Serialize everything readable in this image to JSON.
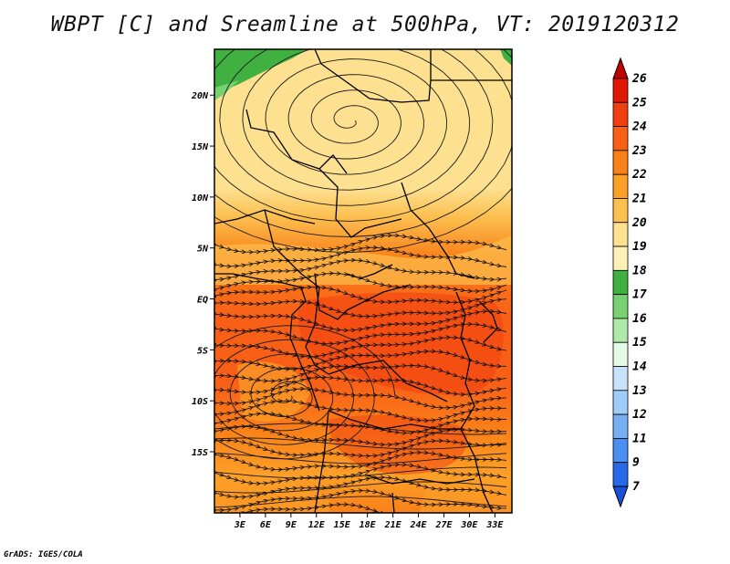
{
  "title": "WBPT [C] and Sreamline at 500hPa, VT: 2019120312",
  "credit": "GrADS: IGES/COLA",
  "map": {
    "lon_range": [
      0,
      35
    ],
    "lat_range": [
      -21,
      24.5
    ],
    "lon_ticks": [
      {
        "value": 3,
        "label": "3E"
      },
      {
        "value": 6,
        "label": "6E"
      },
      {
        "value": 9,
        "label": "9E"
      },
      {
        "value": 12,
        "label": "12E"
      },
      {
        "value": 15,
        "label": "15E"
      },
      {
        "value": 18,
        "label": "18E"
      },
      {
        "value": 21,
        "label": "21E"
      },
      {
        "value": 24,
        "label": "24E"
      },
      {
        "value": 27,
        "label": "27E"
      },
      {
        "value": 30,
        "label": "30E"
      },
      {
        "value": 33,
        "label": "33E"
      }
    ],
    "lat_ticks": [
      {
        "value": 20,
        "label": "20N"
      },
      {
        "value": 15,
        "label": "15N"
      },
      {
        "value": 10,
        "label": "10N"
      },
      {
        "value": 5,
        "label": "5N"
      },
      {
        "value": 0,
        "label": "EQ"
      },
      {
        "value": -5,
        "label": "5S"
      },
      {
        "value": -10,
        "label": "10S"
      },
      {
        "value": -15,
        "label": "15S"
      }
    ],
    "cyclones": [
      {
        "name": "northern-cyclone",
        "lon": 16,
        "lat": 17.5
      },
      {
        "name": "southern-cyclone",
        "lon": 8.5,
        "lat": -9.5
      }
    ]
  },
  "colorbar": {
    "labels": [
      "26",
      "25",
      "24",
      "23",
      "22",
      "21",
      "20",
      "19",
      "18",
      "17",
      "16",
      "15",
      "14",
      "13",
      "12",
      "11",
      "9",
      "7"
    ],
    "colors": [
      "#c00000",
      "#e01808",
      "#f04010",
      "#f86018",
      "#fa8018",
      "#fca028",
      "#fcc050",
      "#fde090",
      "#fff0b8",
      "#40b040",
      "#78d070",
      "#b0eaa8",
      "#e6fae8",
      "#c8e2fa",
      "#a0ccf8",
      "#78b0f4",
      "#4a8ef0",
      "#2868e6",
      "#1a4fd8"
    ]
  }
}
